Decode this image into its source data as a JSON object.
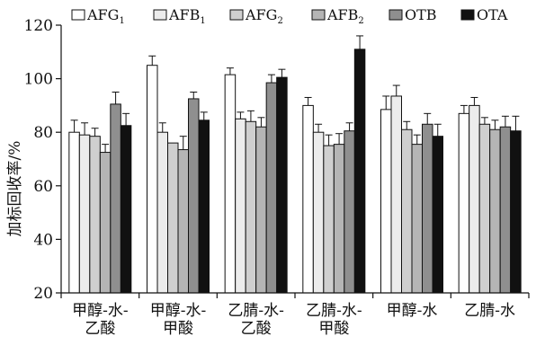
{
  "chart_data": {
    "type": "bar",
    "title": "",
    "xlabel": "",
    "ylabel": "加标回收率/%",
    "ylim": [
      20,
      120
    ],
    "yticks": [
      20,
      40,
      60,
      80,
      100,
      120
    ],
    "grid": false,
    "legend_position": "top",
    "categories": [
      [
        "甲醇-水-",
        "乙酸"
      ],
      [
        "甲醇-水-",
        "甲酸"
      ],
      [
        "乙腈-水-",
        "乙酸"
      ],
      [
        "乙腈-水-",
        "甲酸"
      ],
      [
        "甲醇-水"
      ],
      [
        "乙腈-水"
      ]
    ],
    "series": [
      {
        "name": "AFG",
        "sub": "1",
        "color": "#ffffff",
        "values": [
          80,
          105,
          101.5,
          90,
          88.5,
          87
        ],
        "errors": [
          4.5,
          3.5,
          2.5,
          3,
          5,
          3
        ]
      },
      {
        "name": "AFB",
        "sub": "1",
        "color": "#ececec",
        "values": [
          79,
          80,
          85,
          80,
          93.5,
          90
        ],
        "errors": [
          4.5,
          3.5,
          2.5,
          3,
          4,
          3
        ]
      },
      {
        "name": "AFG",
        "sub": "2",
        "color": "#cfcfcf",
        "values": [
          78.5,
          76,
          84,
          75,
          81,
          83
        ],
        "errors": [
          3,
          0,
          4,
          4,
          3,
          2.5
        ]
      },
      {
        "name": "AFB",
        "sub": "2",
        "color": "#b5b5b5",
        "values": [
          72.5,
          73.5,
          82,
          75.5,
          75.5,
          81
        ],
        "errors": [
          3,
          5,
          3.5,
          4,
          3.5,
          3.5
        ]
      },
      {
        "name": "OTB",
        "sub": "",
        "color": "#8f8f8f",
        "values": [
          90.5,
          92.5,
          98.5,
          80.5,
          83,
          82
        ],
        "errors": [
          4.5,
          2.5,
          3,
          3,
          4,
          4
        ]
      },
      {
        "name": "OTA",
        "sub": "",
        "color": "#111111",
        "values": [
          82.5,
          84.5,
          100.5,
          111,
          78.5,
          80.5
        ],
        "errors": [
          4.5,
          3,
          3,
          5,
          4.5,
          5.5
        ]
      }
    ]
  }
}
